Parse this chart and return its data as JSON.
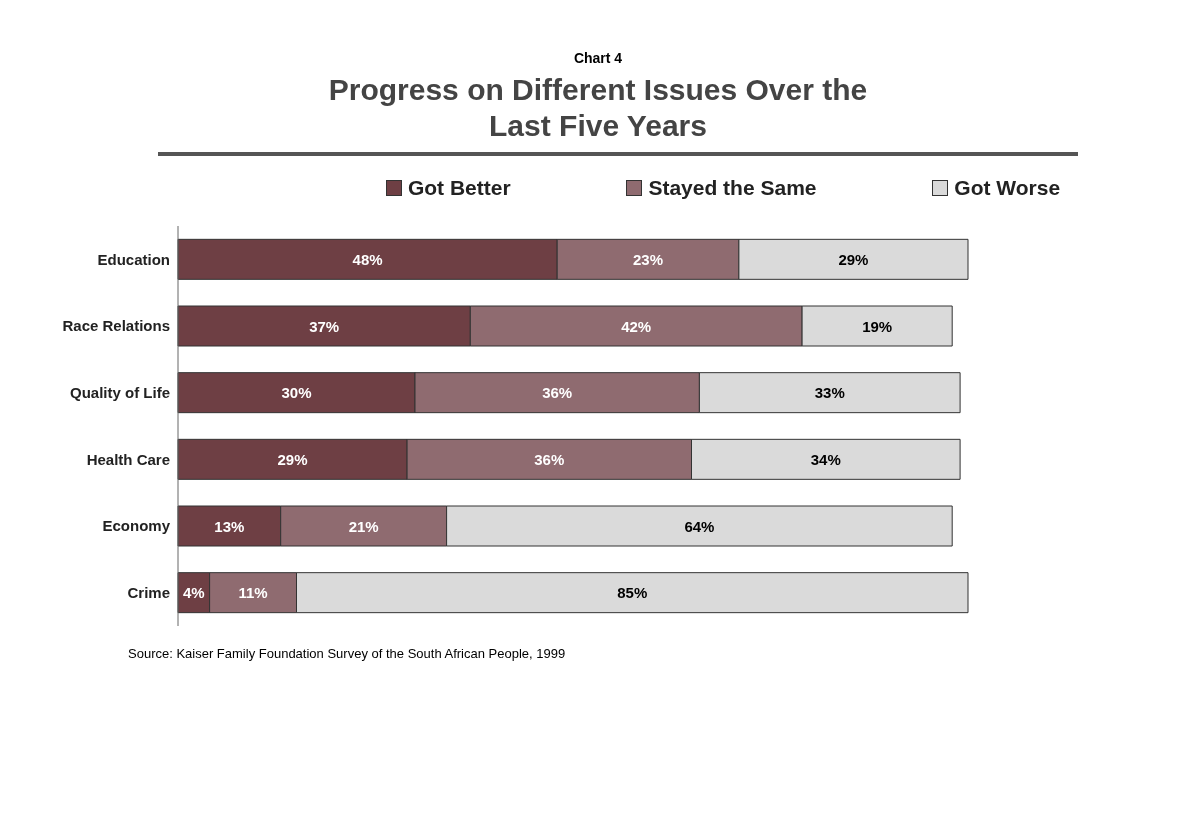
{
  "chart_data": {
    "type": "bar",
    "orientation": "horizontal",
    "stacked": true,
    "subtitle": "Chart 4",
    "title": "Progress on Different Issues Over the Last Five Years",
    "categories": [
      "Education",
      "Race Relations",
      "Quality of Life",
      "Health Care",
      "Economy",
      "Crime"
    ],
    "series": [
      {
        "name": "Got Better",
        "color": "#6e3f44",
        "values": [
          48,
          37,
          30,
          29,
          13,
          4
        ],
        "value_labels": [
          "48%",
          "37%",
          "30%",
          "29%",
          "13%",
          "4%"
        ]
      },
      {
        "name": "Stayed the Same",
        "color": "#8f6b70",
        "values": [
          23,
          42,
          36,
          36,
          21,
          11
        ],
        "value_labels": [
          "23%",
          "42%",
          "36%",
          "36%",
          "21%",
          "11%"
        ]
      },
      {
        "name": "Got Worse",
        "color": "#dadada",
        "values": [
          29,
          19,
          33,
          34,
          64,
          85
        ],
        "value_labels": [
          "29%",
          "19%",
          "33%",
          "34%",
          "64%",
          "85%"
        ]
      }
    ],
    "legend": "top",
    "annotations": [
      "Source: Kaiser Family Foundation Survey of the South African People, 1999"
    ]
  }
}
